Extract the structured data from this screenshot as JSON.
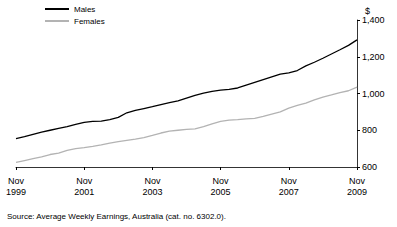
{
  "chart_data": {
    "type": "line",
    "ylabel": "$",
    "source": "Source: Average Weekly Earnings, Australia (cat. no. 6302.0).",
    "categories": [
      "Nov 1999",
      null,
      null,
      null,
      null,
      null,
      null,
      null,
      "Nov 2001",
      null,
      null,
      null,
      null,
      null,
      null,
      null,
      "Nov 2003",
      null,
      null,
      null,
      null,
      null,
      null,
      null,
      "Nov 2005",
      null,
      null,
      null,
      null,
      null,
      null,
      null,
      "Nov 2007",
      null,
      null,
      null,
      null,
      null,
      null,
      null,
      "Nov 2009"
    ],
    "series": [
      {
        "name": "Males",
        "color": "#000000",
        "values": [
          755,
          765,
          778,
          790,
          800,
          810,
          820,
          832,
          843,
          848,
          850,
          858,
          870,
          895,
          908,
          918,
          928,
          940,
          950,
          960,
          975,
          990,
          1002,
          1012,
          1018,
          1022,
          1030,
          1045,
          1060,
          1075,
          1090,
          1105,
          1112,
          1125,
          1150,
          1170,
          1192,
          1215,
          1238,
          1262,
          1292
        ]
      },
      {
        "name": "Females",
        "color": "#b3b3b3",
        "values": [
          625,
          635,
          645,
          655,
          668,
          675,
          690,
          700,
          705,
          712,
          720,
          730,
          738,
          745,
          752,
          760,
          772,
          785,
          795,
          800,
          805,
          808,
          820,
          835,
          848,
          855,
          858,
          862,
          865,
          875,
          888,
          900,
          920,
          935,
          948,
          965,
          980,
          992,
          1005,
          1015,
          1035
        ]
      }
    ],
    "ylim": [
      600,
      1400
    ],
    "yticks": [
      600,
      800,
      1000,
      1200,
      1400
    ],
    "grid": false,
    "legend": "top-left"
  }
}
